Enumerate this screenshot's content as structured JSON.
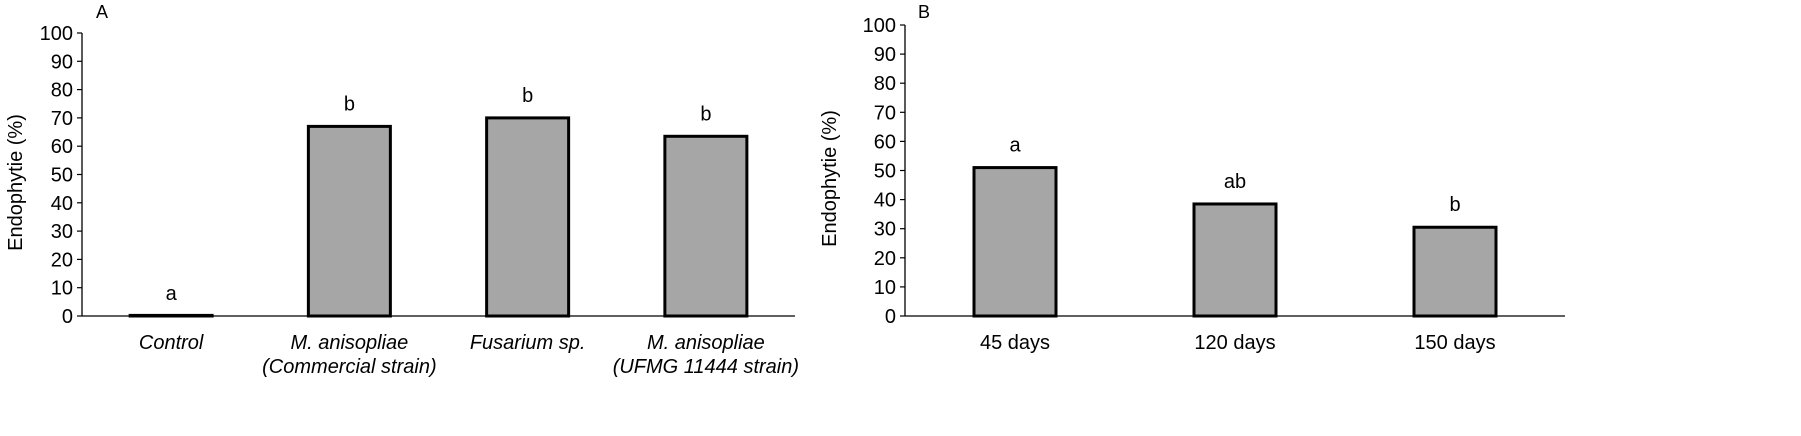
{
  "chart_data": [
    {
      "panel_label": "A",
      "type": "bar",
      "ylabel": "Endophytie (%)",
      "ylim": [
        0,
        100
      ],
      "yticks": [
        0,
        10,
        20,
        30,
        40,
        50,
        60,
        70,
        80,
        90,
        100
      ],
      "categories": [
        {
          "lines": [
            "Control"
          ],
          "italic": [
            true
          ]
        },
        {
          "lines": [
            "M. anisopliae",
            "(Commercial strain)"
          ],
          "italic": [
            true,
            true
          ]
        },
        {
          "lines": [
            "Fusarium sp."
          ],
          "italic": [
            true
          ]
        },
        {
          "lines": [
            "M. anisopliae",
            "(UFMG 11444 strain)"
          ],
          "italic": [
            true,
            true
          ]
        }
      ],
      "values": [
        0,
        67,
        70,
        63.5
      ],
      "letters": [
        "a",
        "b",
        "b",
        "b"
      ],
      "bar_color": "#a6a6a6",
      "grid": false
    },
    {
      "panel_label": "B",
      "type": "bar",
      "ylabel": "Endophytie (%)",
      "ylim": [
        0,
        100
      ],
      "yticks": [
        0,
        10,
        20,
        30,
        40,
        50,
        60,
        70,
        80,
        90,
        100
      ],
      "categories": [
        {
          "lines": [
            "45 days"
          ],
          "italic": [
            false
          ]
        },
        {
          "lines": [
            "120 days"
          ],
          "italic": [
            false
          ]
        },
        {
          "lines": [
            "150 days"
          ],
          "italic": [
            false
          ]
        }
      ],
      "values": [
        51,
        38.5,
        30.5
      ],
      "letters": [
        "a",
        "ab",
        "b"
      ],
      "bar_color": "#a6a6a6",
      "grid": false
    }
  ]
}
